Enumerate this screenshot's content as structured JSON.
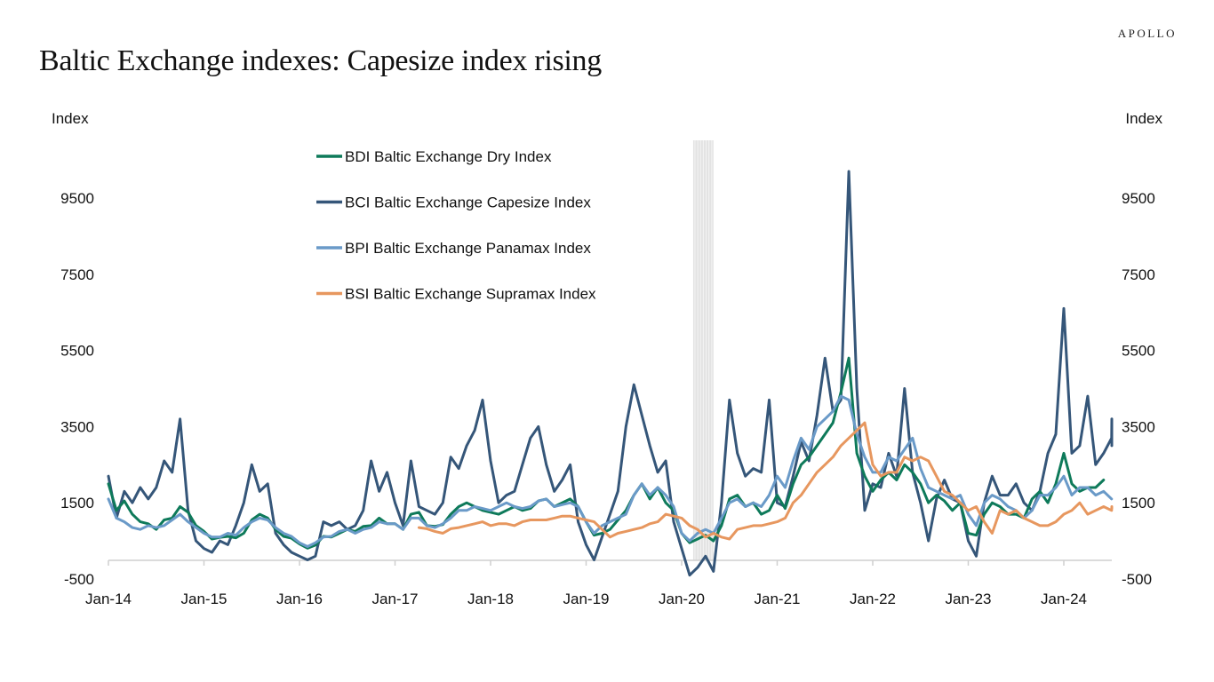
{
  "brand": "APOLLO",
  "title": "Baltic Exchange indexes: Capesize index rising",
  "chart_data": {
    "type": "line",
    "title": "Baltic Exchange indexes: Capesize index rising",
    "ylabel_left": "Index",
    "ylabel_right": "Index",
    "xlabel": "",
    "ylim": [
      -500,
      10500
    ],
    "y_ticks": [
      -500,
      1500,
      3500,
      5500,
      7500,
      9500
    ],
    "y_tick_labels": [
      "-500",
      "1500",
      "3500",
      "5500",
      "7500",
      "9500"
    ],
    "x_ticks": [
      "Jan-14",
      "Jan-15",
      "Jan-16",
      "Jan-17",
      "Jan-18",
      "Jan-19",
      "Jan-20",
      "Jan-21",
      "Jan-22",
      "Jan-23",
      "Jan-24"
    ],
    "x_range": [
      "2014-01",
      "2024-06"
    ],
    "grid": false,
    "legend_position": "top-center",
    "shaded_period": {
      "label": "",
      "start": "2020-02",
      "end": "2020-05",
      "color": "#e3e3e3"
    },
    "x_start": "2014-01",
    "x_step": "month",
    "series": [
      {
        "name": "BDI Baltic Exchange Dry Index",
        "color": "#0e7a5a",
        "start": "2014-01",
        "values": [
          2000,
          1300,
          1550,
          1200,
          1000,
          950,
          800,
          1050,
          1100,
          1400,
          1250,
          900,
          750,
          550,
          590,
          620,
          580,
          700,
          1050,
          1200,
          1100,
          800,
          620,
          570,
          420,
          310,
          390,
          620,
          600,
          700,
          800,
          750,
          880,
          900,
          1100,
          950,
          950,
          800,
          1200,
          1250,
          900,
          880,
          930,
          1200,
          1400,
          1500,
          1400,
          1300,
          1250,
          1200,
          1300,
          1400,
          1300,
          1350,
          1550,
          1600,
          1400,
          1500,
          1600,
          1400,
          1000,
          650,
          700,
          800,
          1050,
          1300,
          1700,
          2000,
          1600,
          1900,
          1500,
          1300,
          700,
          450,
          550,
          650,
          500,
          900,
          1600,
          1700,
          1400,
          1500,
          1200,
          1300,
          1700,
          1350,
          2000,
          2500,
          2700,
          3000,
          3300,
          3600,
          4400,
          5300,
          2800,
          2200,
          1800,
          2100,
          2300,
          2100,
          2500,
          2300,
          2000,
          1500,
          1700,
          1550,
          1300,
          1500,
          700,
          650,
          1200,
          1500,
          1400,
          1200,
          1200,
          1100,
          1600,
          1800,
          1500,
          2000,
          2800,
          2000,
          1800,
          1900,
          1900,
          2100
        ]
      },
      {
        "name": "BCI Baltic Exchange Capesize Index",
        "color": "#355679",
        "start": "2014-01",
        "values": [
          2200,
          1100,
          1800,
          1500,
          1900,
          1600,
          1900,
          2600,
          2300,
          3700,
          1300,
          500,
          300,
          200,
          500,
          400,
          900,
          1500,
          2500,
          1800,
          2000,
          700,
          400,
          200,
          100,
          0,
          100,
          1000,
          900,
          1000,
          800,
          900,
          1300,
          2600,
          1800,
          2300,
          1500,
          900,
          2600,
          1400,
          1300,
          1200,
          1500,
          2700,
          2400,
          3000,
          3400,
          4200,
          2600,
          1500,
          1700,
          1800,
          2500,
          3200,
          3500,
          2500,
          1800,
          2100,
          2500,
          1000,
          400,
          0,
          600,
          1200,
          1800,
          3500,
          4600,
          3800,
          3000,
          2300,
          2600,
          1000,
          300,
          -400,
          -200,
          100,
          -300,
          1500,
          4200,
          2800,
          2200,
          2400,
          2300,
          4200,
          1500,
          1400,
          2200,
          3100,
          2600,
          3800,
          5300,
          3900,
          4200,
          10200,
          4500,
          1300,
          2000,
          1900,
          2800,
          2200,
          4500,
          2300,
          1500,
          500,
          1600,
          2100,
          1600,
          1500,
          500,
          100,
          1500,
          2200,
          1700,
          1700,
          2000,
          1500,
          1300,
          1800,
          2800,
          3300,
          6600,
          2800,
          3000,
          4300,
          2500,
          2800,
          3200,
          3700,
          3000
        ]
      },
      {
        "name": "BPI Baltic Exchange Panamax Index",
        "color": "#6a9ac8",
        "start": "2014-01",
        "values": [
          1600,
          1100,
          1000,
          850,
          800,
          900,
          850,
          900,
          1050,
          1200,
          1000,
          850,
          700,
          600,
          600,
          700,
          650,
          850,
          1000,
          1100,
          1050,
          850,
          700,
          620,
          450,
          350,
          450,
          600,
          620,
          750,
          800,
          700,
          800,
          850,
          1000,
          950,
          950,
          800,
          1100,
          1100,
          900,
          850,
          950,
          1100,
          1300,
          1300,
          1400,
          1350,
          1300,
          1400,
          1500,
          1400,
          1350,
          1400,
          1550,
          1600,
          1400,
          1450,
          1500,
          1400,
          1000,
          700,
          900,
          1000,
          1100,
          1200,
          1700,
          2000,
          1700,
          1900,
          1700,
          1400,
          700,
          500,
          700,
          800,
          700,
          1100,
          1500,
          1600,
          1400,
          1500,
          1400,
          1700,
          2200,
          1900,
          2600,
          3200,
          2900,
          3500,
          3700,
          3900,
          4300,
          4200,
          3300,
          2700,
          2300,
          2300,
          2700,
          2600,
          2900,
          3200,
          2400,
          1900,
          1800,
          1700,
          1600,
          1700,
          1200,
          900,
          1500,
          1700,
          1600,
          1400,
          1300,
          1100,
          1300,
          1700,
          1700,
          1900,
          2200,
          1700,
          1900,
          1900,
          1700,
          1800,
          1600
        ]
      },
      {
        "name": "BSI Baltic Exchange Supramax Index",
        "color": "#e7975f",
        "start": "2017-04",
        "values": [
          850,
          820,
          750,
          700,
          820,
          850,
          900,
          950,
          1000,
          900,
          950,
          950,
          900,
          1000,
          1050,
          1050,
          1050,
          1100,
          1150,
          1150,
          1100,
          1050,
          1000,
          800,
          600,
          700,
          750,
          800,
          850,
          950,
          1000,
          1200,
          1150,
          1100,
          900,
          800,
          600,
          700,
          600,
          550,
          800,
          850,
          900,
          900,
          950,
          1000,
          1100,
          1500,
          1700,
          2000,
          2300,
          2500,
          2700,
          3000,
          3200,
          3400,
          3600,
          2500,
          2200,
          2300,
          2300,
          2700,
          2600,
          2700,
          2600,
          2200,
          1800,
          1700,
          1500,
          1300,
          1400,
          1000,
          700,
          1300,
          1200,
          1300,
          1100,
          1000,
          900,
          900,
          1000,
          1200,
          1300,
          1500,
          1200,
          1300,
          1400,
          1300,
          1400,
          1350
        ]
      }
    ]
  }
}
